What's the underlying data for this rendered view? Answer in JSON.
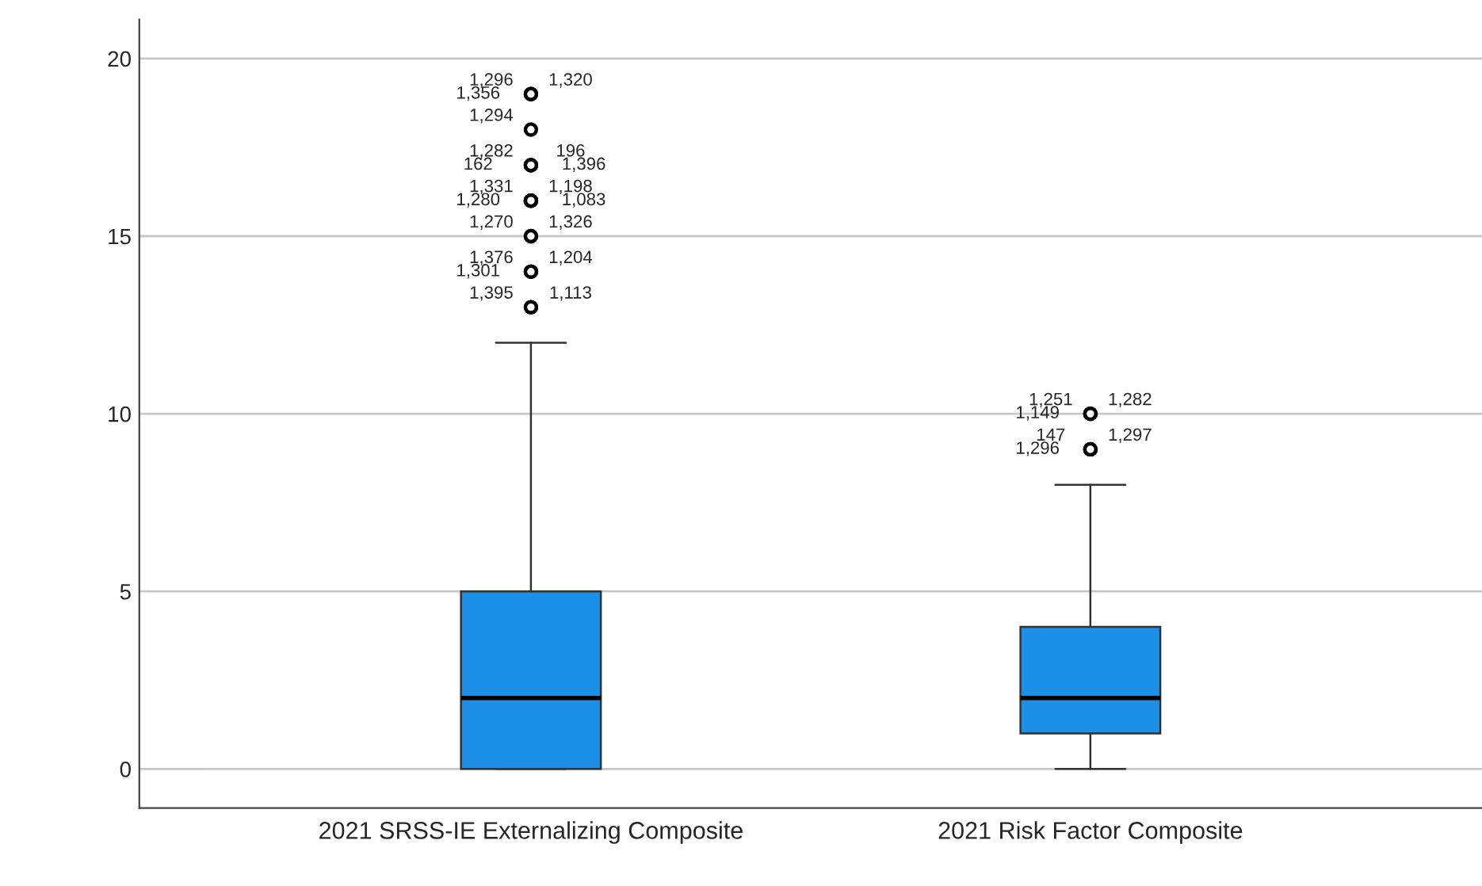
{
  "chart_data": {
    "type": "box",
    "categories": [
      "2021 SRSS-IE Externalizing Composite",
      "2021 Risk Factor Composite"
    ],
    "color": "#1e8fe6",
    "boxes": [
      {
        "low": 0,
        "q1": 0,
        "median": 2,
        "q3": 5,
        "high": 12,
        "outliers": [
          19,
          19,
          19,
          18,
          17,
          17,
          17,
          17,
          16,
          16,
          16,
          16,
          15,
          15,
          14,
          14,
          14,
          13,
          13
        ]
      },
      {
        "low": 0,
        "q1": 1,
        "median": 2,
        "q3": 4,
        "high": 8,
        "outliers": [
          10,
          10,
          10,
          9,
          9,
          9
        ]
      }
    ],
    "ylim": [
      -1.1,
      21.1
    ],
    "yticks": [
      0,
      5,
      10,
      15,
      20
    ],
    "grid": "y",
    "annotations": [
      "1,296",
      "1,320",
      "1,356",
      "1,294",
      "1,282",
      "196",
      "162",
      "1,396",
      "1,331",
      "1,198",
      "1,280",
      "1,083",
      "1,270",
      "1,326",
      "1,376",
      "1,204",
      "1,301",
      "1,395",
      "1,113",
      "1,251",
      "1,282",
      "1,149",
      "147",
      "1,297",
      "1,296"
    ]
  }
}
